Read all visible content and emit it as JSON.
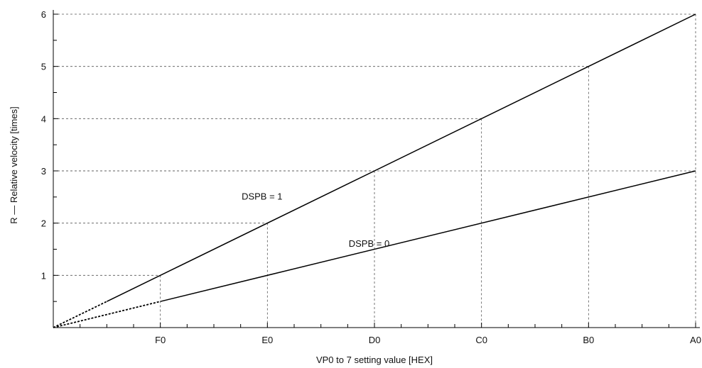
{
  "chart_data": {
    "type": "line",
    "title": "",
    "xlabel": "VP0 to 7 setting value [HEX]",
    "ylabel": "R — Relative velocity [times]",
    "x_categories": [
      "",
      "F0",
      "E0",
      "D0",
      "C0",
      "B0",
      "A0"
    ],
    "xlim": [
      0,
      6
    ],
    "ylim": [
      0,
      6
    ],
    "y_ticks": [
      1,
      2,
      3,
      4,
      5,
      6
    ],
    "grid": "dashed guide lines at integer/half values",
    "series": [
      {
        "name": "DSPB = 1",
        "points": [
          [
            0,
            0
          ],
          [
            1,
            1
          ],
          [
            2,
            2
          ],
          [
            3,
            3
          ],
          [
            4,
            4
          ],
          [
            5,
            5
          ],
          [
            6,
            6
          ]
        ],
        "dashed_until_x": 0.5
      },
      {
        "name": "DSPB = 0",
        "points": [
          [
            0,
            0
          ],
          [
            1,
            0.5
          ],
          [
            2,
            1
          ],
          [
            3,
            1.5
          ],
          [
            4,
            2
          ],
          [
            5,
            2.5
          ],
          [
            6,
            3
          ]
        ],
        "dashed_until_x": 1
      }
    ]
  }
}
